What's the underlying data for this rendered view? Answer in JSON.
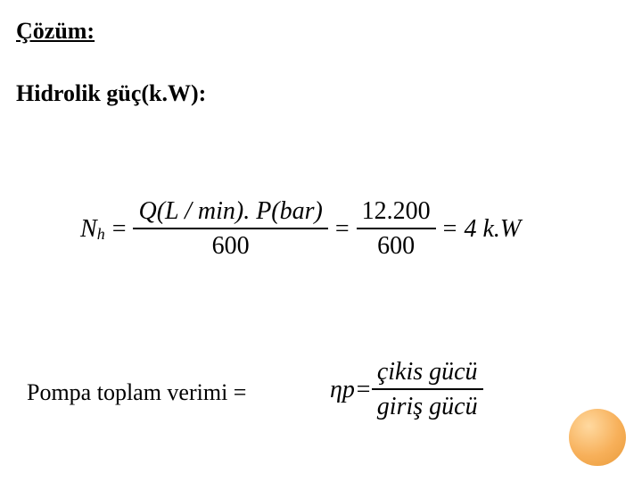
{
  "headings": {
    "cozum": "Çözüm:",
    "hidrolik": "Hidrolik güç(k.W):"
  },
  "equation1": {
    "lhs_var": "N",
    "lhs_sub": "h",
    "eq": "=",
    "frac1_num": "Q(L / min). P(bar)",
    "frac1_den": "600",
    "frac2_num": "12.200",
    "frac2_den": "600",
    "result": "4 k.W"
  },
  "pompa_label": "Pompa toplam verimi =",
  "equation2": {
    "eta": "η",
    "sub": "p",
    "eq": "=",
    "num": "çikis gücü",
    "den": "giriş gücü"
  },
  "style": {
    "heading_fontsize": 26,
    "eq_fontsize": 28,
    "text_color": "#000000",
    "background": "#ffffff",
    "circle_gradient_inner": "#ffd9a0",
    "circle_gradient_mid": "#f7b05a",
    "circle_gradient_outer": "#e99a3a"
  }
}
